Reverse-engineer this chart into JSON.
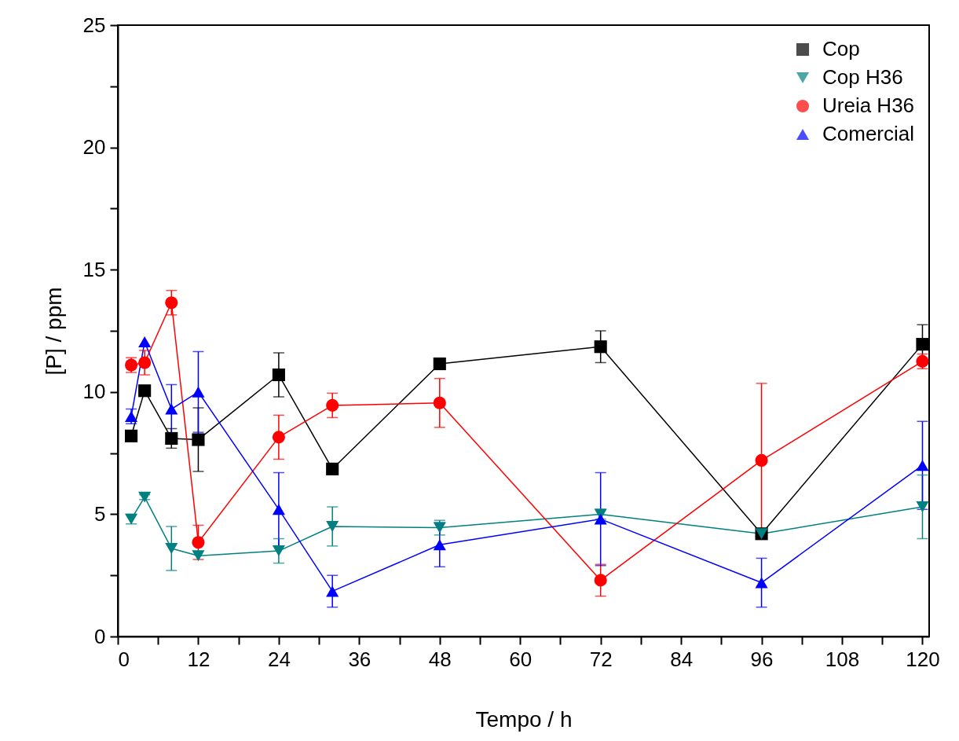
{
  "chart_data": {
    "type": "line",
    "xlabel": "Tempo / h",
    "ylabel": "[P] / ppm",
    "x": [
      2,
      4,
      8,
      12,
      24,
      32,
      48,
      72,
      96,
      120
    ],
    "xlim": [
      0,
      121
    ],
    "ylim": [
      0,
      25
    ],
    "xticks": [
      0,
      {
        "value": 6,
        "label": null
      },
      12,
      {
        "value": 18,
        "label": null
      },
      24,
      {
        "value": 30,
        "label": null
      },
      36,
      {
        "value": 42,
        "label": null
      },
      48,
      {
        "value": 54,
        "label": null
      },
      60,
      {
        "value": 66,
        "label": null
      },
      72,
      {
        "value": 78,
        "label": null
      },
      84,
      {
        "value": 90,
        "label": null
      },
      96,
      {
        "value": 102,
        "label": null
      },
      108,
      {
        "value": 114,
        "label": null
      },
      120
    ],
    "yticks": [
      0,
      {
        "value": 2.5,
        "label": null
      },
      5,
      {
        "value": 7.5,
        "label": null
      },
      10,
      {
        "value": 12.5,
        "label": null
      },
      15,
      {
        "value": 17.5,
        "label": null
      },
      20,
      {
        "value": 22.5,
        "label": null
      },
      25
    ],
    "grid": false,
    "legend": "top right",
    "line_style": "solid",
    "series": [
      {
        "name": "Cop",
        "color": "#000000",
        "marker": "square",
        "values": [
          8.2,
          10.05,
          8.1,
          8.05,
          10.7,
          6.85,
          11.15,
          11.85,
          4.2,
          11.95
        ],
        "errors": [
          null,
          null,
          0.4,
          1.3,
          0.9,
          null,
          0.2,
          0.65,
          null,
          0.8
        ]
      },
      {
        "name": "Cop H36",
        "color": "#008080",
        "marker": "triangle-down",
        "values": [
          4.8,
          5.7,
          3.6,
          3.3,
          3.5,
          4.5,
          4.45,
          5.0,
          4.2,
          5.3
        ],
        "errors": [
          0.2,
          0.1,
          0.9,
          null,
          0.5,
          0.8,
          0.3,
          0.2,
          null,
          1.3
        ]
      },
      {
        "name": "Ureia H36",
        "color": "#ff0000",
        "marker": "circle",
        "values": [
          11.1,
          11.2,
          13.65,
          3.85,
          8.15,
          9.45,
          9.55,
          2.3,
          7.2,
          11.25
        ],
        "errors": [
          0.3,
          0.5,
          0.5,
          0.7,
          0.9,
          0.5,
          1.0,
          0.65,
          3.15,
          0.3
        ]
      },
      {
        "name": "Comercial",
        "color": "#0000ff",
        "marker": "triangle",
        "values": [
          9.0,
          12.05,
          9.3,
          10.0,
          5.2,
          1.85,
          3.75,
          4.8,
          2.2,
          7.0
        ],
        "errors": [
          0.3,
          null,
          1.0,
          1.65,
          1.5,
          0.65,
          0.9,
          1.9,
          1.0,
          1.8
        ]
      }
    ]
  }
}
